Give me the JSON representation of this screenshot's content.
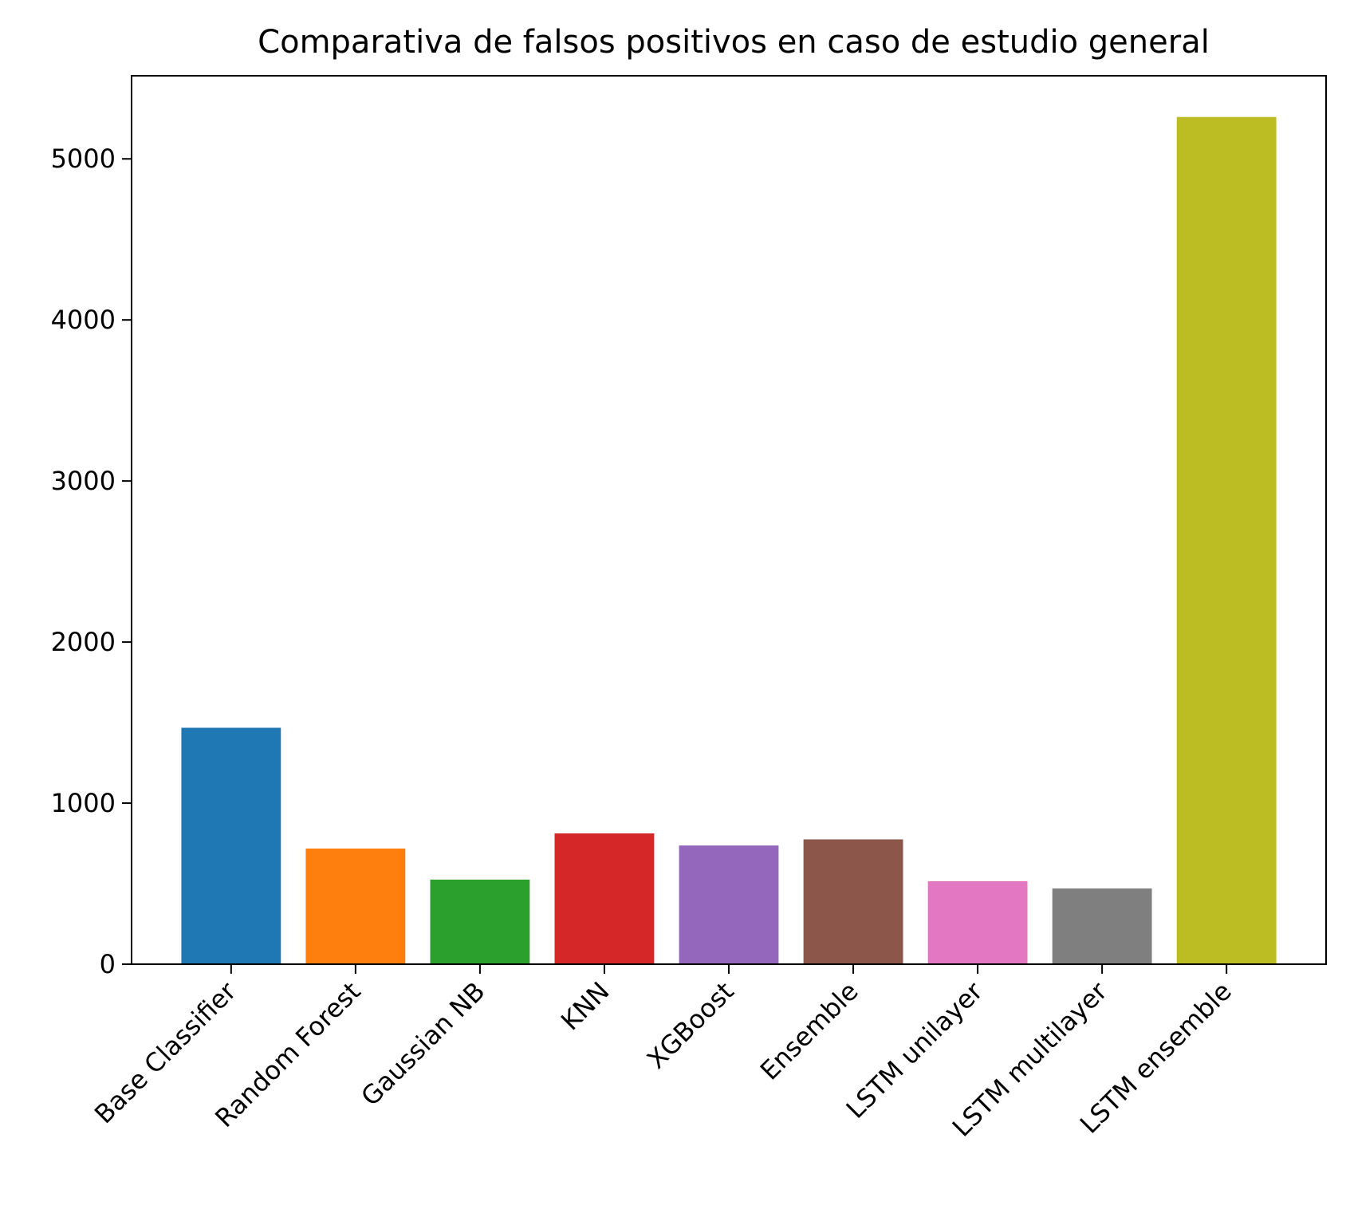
{
  "chart_data": {
    "type": "bar",
    "title": "Comparativa de falsos positivos en caso de estudio general",
    "xlabel": "",
    "ylabel": "",
    "categories": [
      "Base Classifier",
      "Random Forest",
      "Gaussian NB",
      "KNN",
      "XGBoost",
      "Ensemble",
      "LSTM unilayer",
      "LSTM multilayer",
      "LSTM ensemble"
    ],
    "values": [
      1468,
      718,
      525,
      812,
      737,
      775,
      515,
      470,
      5260
    ],
    "colors": [
      "#1f77b4",
      "#ff7f0e",
      "#2ca02c",
      "#d62728",
      "#9467bd",
      "#8c564b",
      "#e377c2",
      "#7f7f7f",
      "#bcbd22"
    ],
    "ylim": [
      0,
      5516
    ],
    "yticks": [
      0,
      1000,
      2000,
      3000,
      4000,
      5000
    ],
    "ytick_labels": [
      "0",
      "1000",
      "2000",
      "3000",
      "4000",
      "5000"
    ],
    "grid": false,
    "legend": "none"
  }
}
